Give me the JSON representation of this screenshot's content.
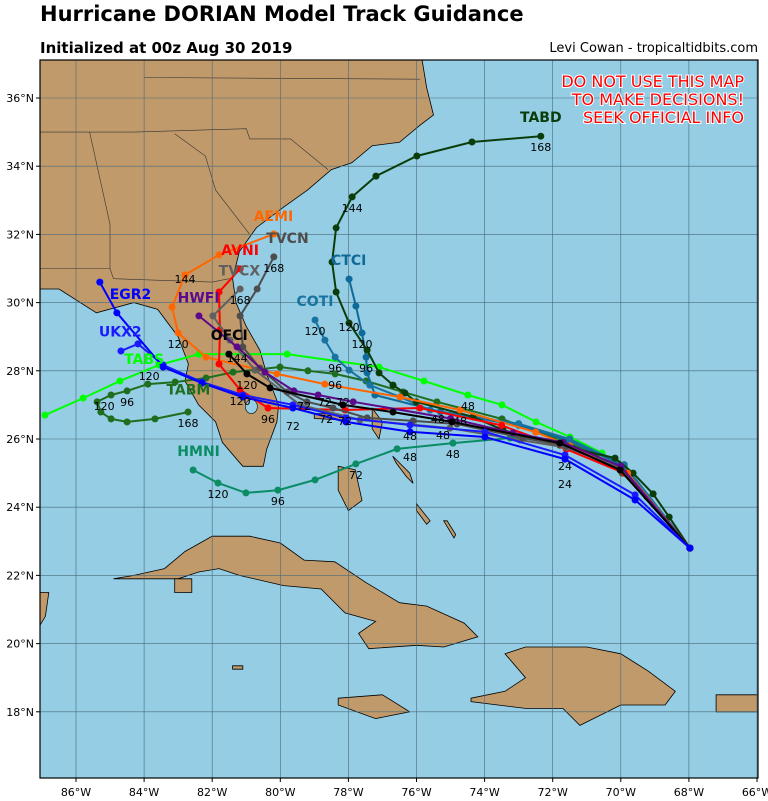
{
  "header": {
    "title": "Hurricane DORIAN Model Track Guidance",
    "subtitle": "Initialized at 00z Aug 30 2019",
    "credit": "Levi Cowan - tropicaltidbits.com"
  },
  "disclaimer": [
    "DO NOT USE THIS MAP",
    "TO MAKE DECISIONS!",
    "SEEK OFFICIAL INFO"
  ],
  "map": {
    "lon_range": [
      -87,
      -66
    ],
    "lat_range": [
      16,
      37
    ],
    "lon_ticks": [
      "86°W",
      "84°W",
      "82°W",
      "80°W",
      "78°W",
      "76°W",
      "74°W",
      "72°W",
      "70°W",
      "68°W",
      "66°W"
    ],
    "lat_ticks": [
      "18°N",
      "20°N",
      "22°N",
      "24°N",
      "26°N",
      "28°N",
      "30°N",
      "32°N",
      "34°N",
      "36°N"
    ],
    "colors": {
      "ocean": "#94cde4",
      "land": "#c19a6b",
      "grid": "#4a6a7a",
      "disclaimer": "#ff0000"
    }
  },
  "tracks": [
    {
      "name": "TABM",
      "color": "#1f6e1f",
      "points": [
        [
          -67.97,
          22.8
        ],
        [
          -69.23,
          24.3
        ],
        [
          -69.96,
          25.0
        ],
        [
          -70.73,
          25.53
        ],
        [
          -71.58,
          25.91
        ],
        [
          -72.49,
          26.21
        ],
        [
          -73.49,
          26.59
        ],
        [
          -75.4,
          27.09
        ],
        [
          -76.4,
          27.38
        ],
        [
          -77.48,
          27.7
        ],
        [
          -78.39,
          27.91
        ],
        [
          -79.19,
          28.0
        ],
        [
          -80.01,
          28.11
        ],
        [
          -81.39,
          27.96
        ],
        [
          -82.18,
          27.79
        ],
        [
          -83.09,
          27.67
        ],
        [
          -83.89,
          27.61
        ],
        [
          -84.5,
          27.41
        ],
        [
          -84.97,
          27.29
        ],
        [
          -85.38,
          27.09
        ],
        [
          -85.27,
          26.79
        ],
        [
          -84.97,
          26.59
        ],
        [
          -84.5,
          26.5
        ],
        [
          -83.68,
          26.59
        ],
        [
          -82.71,
          26.79
        ]
      ],
      "labels": [
        [
          10,
          "96"
        ],
        [
          17,
          "96"
        ],
        [
          18,
          "120"
        ],
        [
          24,
          "168"
        ]
      ],
      "name_pos": [
        -82.7,
        27.3
      ]
    },
    {
      "name": "TABS",
      "color": "#00ff00",
      "points": [
        [
          -67.97,
          22.8
        ],
        [
          -69.88,
          25.12
        ],
        [
          -70.55,
          25.59
        ],
        [
          -71.49,
          26.06
        ],
        [
          -72.49,
          26.5
        ],
        [
          -73.49,
          27.0
        ],
        [
          -74.49,
          27.29
        ],
        [
          -75.78,
          27.7
        ],
        [
          -77.1,
          28.11
        ],
        [
          -79.8,
          28.49
        ],
        [
          -82.39,
          28.49
        ],
        [
          -83.56,
          28.17
        ],
        [
          -84.71,
          27.7
        ],
        [
          -85.79,
          27.2
        ],
        [
          -86.91,
          26.7
        ]
      ],
      "labels": [
        [
          6,
          "48"
        ]
      ],
      "name_pos": [
        -84.0,
        28.2
      ]
    },
    {
      "name": "HMNI",
      "color": "#0b8c64",
      "points": [
        [
          -67.97,
          22.8
        ],
        [
          -70.02,
          25.09
        ],
        [
          -71.79,
          25.97
        ],
        [
          -73.25,
          26.03
        ],
        [
          -74.93,
          25.88
        ],
        [
          -76.57,
          25.71
        ],
        [
          -77.78,
          25.27
        ],
        [
          -78.98,
          24.8
        ],
        [
          -80.07,
          24.5
        ],
        [
          -81.01,
          24.42
        ],
        [
          -81.83,
          24.71
        ],
        [
          -82.56,
          25.09
        ]
      ],
      "labels": [
        [
          4,
          "48"
        ],
        [
          6,
          "72"
        ],
        [
          8,
          "96"
        ],
        [
          10,
          "120"
        ]
      ],
      "name_pos": [
        -82.4,
        25.5
      ]
    },
    {
      "name": "CTCI",
      "color": "#0e6a98",
      "points": [
        [
          -67.97,
          22.8
        ],
        [
          -69.9,
          25.2
        ],
        [
          -71.5,
          25.95
        ],
        [
          -73.0,
          26.4
        ],
        [
          -75.3,
          26.8
        ],
        [
          -77.22,
          27.29
        ],
        [
          -77.45,
          27.94
        ],
        [
          -77.48,
          28.4
        ],
        [
          -77.6,
          29.11
        ],
        [
          -77.78,
          29.9
        ],
        [
          -77.98,
          30.69
        ]
      ],
      "labels": [
        [
          7,
          "96"
        ],
        [
          8,
          "120"
        ]
      ],
      "name_pos": [
        -77.99,
        31.1
      ]
    },
    {
      "name": "COTI",
      "color": "#1873a0",
      "points": [
        [
          -67.97,
          22.8
        ],
        [
          -69.9,
          25.25
        ],
        [
          -71.5,
          26.0
        ],
        [
          -73.0,
          26.45
        ],
        [
          -75.6,
          26.85
        ],
        [
          -76.48,
          27.23
        ],
        [
          -77.37,
          27.58
        ],
        [
          -77.98,
          28.02
        ],
        [
          -78.39,
          28.4
        ],
        [
          -78.69,
          28.9
        ],
        [
          -78.98,
          29.49
        ]
      ],
      "labels": [
        [
          8,
          "96"
        ],
        [
          10,
          "120"
        ]
      ],
      "name_pos": [
        -78.98,
        29.9
      ]
    },
    {
      "name": "TABD",
      "color": "#0b3d0b",
      "points": [
        [
          -67.97,
          22.8
        ],
        [
          -68.58,
          23.71
        ],
        [
          -69.05,
          24.39
        ],
        [
          -69.64,
          25.0
        ],
        [
          -70.17,
          25.44
        ],
        [
          -71.79,
          25.82
        ],
        [
          -73.46,
          26.26
        ],
        [
          -74.34,
          26.65
        ],
        [
          -76.01,
          27.09
        ],
        [
          -76.34,
          27.35
        ],
        [
          -76.69,
          27.58
        ],
        [
          -77.1,
          27.94
        ],
        [
          -77.45,
          28.61
        ],
        [
          -77.98,
          29.4
        ],
        [
          -78.36,
          30.31
        ],
        [
          -78.48,
          31.19
        ],
        [
          -78.36,
          32.19
        ],
        [
          -77.89,
          33.1
        ],
        [
          -77.19,
          33.71
        ],
        [
          -75.99,
          34.3
        ],
        [
          -74.37,
          34.71
        ],
        [
          -72.35,
          34.88
        ]
      ],
      "labels": [
        [
          13,
          "120"
        ],
        [
          17,
          "144"
        ],
        [
          21,
          "168"
        ]
      ],
      "name_pos": [
        -72.35,
        35.3
      ]
    },
    {
      "name": "AEMI",
      "color": "#ff6600",
      "points": [
        [
          -67.97,
          22.8
        ],
        [
          -69.8,
          25.0
        ],
        [
          -71.5,
          25.8
        ],
        [
          -72.5,
          26.2
        ],
        [
          -74.72,
          26.85
        ],
        [
          -76.48,
          27.23
        ],
        [
          -78.69,
          27.61
        ],
        [
          -80.1,
          27.91
        ],
        [
          -82.18,
          28.4
        ],
        [
          -83.0,
          29.11
        ],
        [
          -83.18,
          29.87
        ],
        [
          -82.8,
          30.81
        ],
        [
          -81.8,
          31.4
        ],
        [
          -80.19,
          32.01
        ]
      ],
      "labels": [
        [
          4,
          "48"
        ],
        [
          6,
          "72"
        ],
        [
          9,
          "120"
        ],
        [
          11,
          "144"
        ]
      ],
      "name_pos": [
        -80.2,
        32.4
      ]
    },
    {
      "name": "AVNI",
      "color": "#ff0000",
      "points": [
        [
          -67.97,
          22.8
        ],
        [
          -69.9,
          25.0
        ],
        [
          -71.6,
          25.7
        ],
        [
          -73.5,
          26.4
        ],
        [
          -75.9,
          26.91
        ],
        [
          -78.1,
          26.85
        ],
        [
          -80.36,
          26.91
        ],
        [
          -81.18,
          27.44
        ],
        [
          -81.8,
          28.2
        ],
        [
          -81.77,
          29.2
        ],
        [
          -81.8,
          30.31
        ],
        [
          -81.18,
          30.99
        ]
      ],
      "labels": [
        [
          5,
          "72"
        ],
        [
          6,
          "96"
        ],
        [
          7,
          "120"
        ]
      ],
      "name_pos": [
        -81.18,
        31.4
      ]
    },
    {
      "name": "TVCX",
      "color": "#606060",
      "points": [
        [
          -67.97,
          22.8
        ],
        [
          -70.0,
          25.15
        ],
        [
          -71.6,
          25.75
        ],
        [
          -72.96,
          25.97
        ],
        [
          -75.02,
          26.32
        ],
        [
          -77.66,
          26.56
        ],
        [
          -79.42,
          27.0
        ],
        [
          -80.74,
          28.02
        ],
        [
          -81.48,
          28.9
        ],
        [
          -81.98,
          29.61
        ],
        [
          -81.18,
          30.4
        ]
      ],
      "labels": [
        [
          10,
          "168"
        ]
      ],
      "name_pos": [
        -81.2,
        30.8
      ]
    },
    {
      "name": "TVCN",
      "color": "#4d4d4d",
      "points": [
        [
          -67.97,
          22.8
        ],
        [
          -70.0,
          25.1
        ],
        [
          -71.6,
          25.8
        ],
        [
          -72.87,
          26.03
        ],
        [
          -74.81,
          26.44
        ],
        [
          -76.1,
          26.53
        ],
        [
          -77.45,
          26.62
        ],
        [
          -78.45,
          26.91
        ],
        [
          -79.22,
          27.09
        ],
        [
          -79.8,
          27.38
        ],
        [
          -80.6,
          28.08
        ],
        [
          -81.1,
          28.7
        ],
        [
          -81.18,
          29.61
        ],
        [
          -80.68,
          30.4
        ],
        [
          -80.19,
          31.34
        ]
      ],
      "labels": [
        [
          4,
          "48"
        ],
        [
          7,
          "72"
        ],
        [
          14,
          "168"
        ]
      ],
      "name_pos": [
        -80.2,
        31.75
      ]
    },
    {
      "name": "HWFI",
      "color": "#5c0a8c",
      "points": [
        [
          -67.97,
          22.8
        ],
        [
          -70.0,
          25.2
        ],
        [
          -71.7,
          25.9
        ],
        [
          -73.17,
          26.18
        ],
        [
          -75.0,
          26.6
        ],
        [
          -77.86,
          27.09
        ],
        [
          -78.89,
          27.29
        ],
        [
          -79.6,
          27.41
        ],
        [
          -80.45,
          27.96
        ],
        [
          -81.27,
          28.7
        ],
        [
          -82.39,
          29.61
        ]
      ],
      "labels": [
        [
          6,
          "72"
        ],
        [
          9,
          "144"
        ]
      ],
      "name_pos": [
        -82.4,
        30.0
      ]
    },
    {
      "name": "OFCI",
      "color": "#000000",
      "points": [
        [
          -67.97,
          22.8
        ],
        [
          -70.02,
          25.09
        ],
        [
          -71.79,
          25.88
        ],
        [
          -74.96,
          26.5
        ],
        [
          -76.69,
          26.79
        ],
        [
          -78.16,
          27.0
        ],
        [
          -80.3,
          27.5
        ],
        [
          -80.98,
          27.91
        ],
        [
          -81.51,
          28.49
        ]
      ],
      "labels": [
        [
          3,
          "48"
        ],
        [
          5,
          "72"
        ],
        [
          7,
          "120"
        ]
      ],
      "name_pos": [
        -81.5,
        28.9
      ]
    },
    {
      "name": "UKX2",
      "color": "#1a1aff",
      "points": [
        [
          -67.97,
          22.8
        ],
        [
          -69.58,
          24.36
        ],
        [
          -71.64,
          25.53
        ],
        [
          -73.99,
          26.21
        ],
        [
          -76.19,
          26.41
        ],
        [
          -78.07,
          26.62
        ],
        [
          -79.63,
          27.0
        ],
        [
          -81.1,
          27.29
        ],
        [
          -82.3,
          27.67
        ],
        [
          -83.44,
          28.17
        ],
        [
          -84.18,
          28.79
        ],
        [
          -84.68,
          28.58
        ]
      ],
      "labels": [
        [
          2,
          "24"
        ],
        [
          4,
          "48"
        ],
        [
          9,
          "120"
        ]
      ],
      "name_pos": [
        -84.7,
        29.0
      ]
    },
    {
      "name": "EGR2",
      "color": "#0000ff",
      "points": [
        [
          -67.97,
          22.8
        ],
        [
          -69.58,
          24.21
        ],
        [
          -71.64,
          25.41
        ],
        [
          -73.99,
          26.06
        ],
        [
          -76.19,
          26.21
        ],
        [
          -78.07,
          26.5
        ],
        [
          -79.63,
          26.91
        ],
        [
          -81.1,
          27.23
        ],
        [
          -82.3,
          27.64
        ],
        [
          -83.44,
          28.11
        ],
        [
          -84.8,
          29.7
        ],
        [
          -85.3,
          30.6
        ]
      ],
      "labels": [
        [
          2,
          "24"
        ],
        [
          4,
          "48"
        ],
        [
          6,
          "72"
        ]
      ],
      "name_pos": [
        -84.4,
        30.1
      ]
    }
  ]
}
